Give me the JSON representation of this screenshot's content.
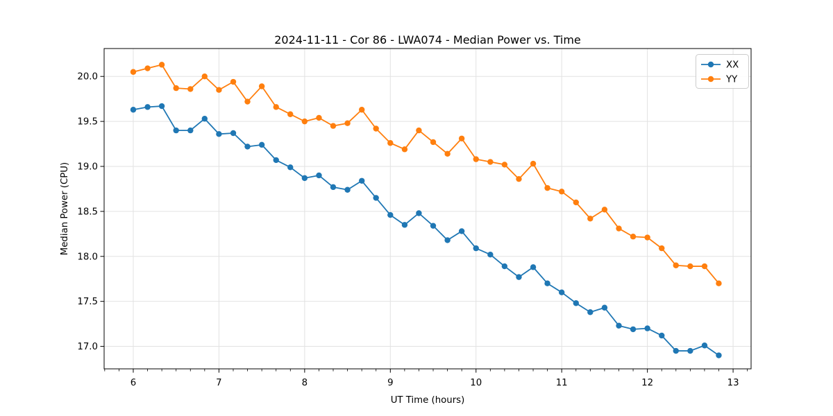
{
  "chart_data": {
    "type": "line",
    "title": "2024-11-11 - Cor 86 - LWA074 - Median Power vs. Time",
    "xlabel": "UT Time (hours)",
    "ylabel": "Median Power (CPU)",
    "legend_position": "upper right",
    "grid": true,
    "marker": "circle",
    "xlim": [
      5.66,
      13.21
    ],
    "ylim": [
      16.75,
      20.31
    ],
    "xticks": [
      6,
      7,
      8,
      9,
      10,
      11,
      12,
      13
    ],
    "xtick_labels": [
      "6",
      "7",
      "8",
      "9",
      "10",
      "11",
      "12",
      "13"
    ],
    "yticks": [
      17.0,
      17.5,
      18.0,
      18.5,
      19.0,
      19.5,
      20.0
    ],
    "ytick_labels": [
      "17.0",
      "17.5",
      "18.0",
      "18.5",
      "19.0",
      "19.5",
      "20.0"
    ],
    "x_minor_step": 0.1666667,
    "grid_color": "#e2e2e2",
    "axis_color": "#000000",
    "x": [
      6.0,
      6.167,
      6.333,
      6.5,
      6.667,
      6.833,
      7.0,
      7.167,
      7.333,
      7.5,
      7.667,
      7.833,
      8.0,
      8.167,
      8.333,
      8.5,
      8.667,
      8.833,
      9.0,
      9.167,
      9.333,
      9.5,
      9.667,
      9.833,
      10.0,
      10.167,
      10.333,
      10.5,
      10.667,
      10.833,
      11.0,
      11.167,
      11.333,
      11.5,
      11.667,
      11.833,
      12.0,
      12.167,
      12.333,
      12.5,
      12.667,
      12.833
    ],
    "series": [
      {
        "name": "XX",
        "color": "#1f77b4",
        "values": [
          19.63,
          19.66,
          19.67,
          19.4,
          19.4,
          19.53,
          19.36,
          19.37,
          19.22,
          19.24,
          19.07,
          18.99,
          18.87,
          18.9,
          18.77,
          18.74,
          18.84,
          18.65,
          18.46,
          18.35,
          18.48,
          18.34,
          18.18,
          18.28,
          18.09,
          18.02,
          17.89,
          17.77,
          17.88,
          17.7,
          17.6,
          17.48,
          17.38,
          17.43,
          17.23,
          17.19,
          17.2,
          17.12,
          16.95,
          16.95,
          17.01,
          16.9
        ]
      },
      {
        "name": "YY",
        "color": "#ff7f0e",
        "values": [
          20.05,
          20.09,
          20.13,
          19.87,
          19.86,
          20.0,
          19.85,
          19.94,
          19.72,
          19.89,
          19.66,
          19.58,
          19.5,
          19.54,
          19.45,
          19.48,
          19.63,
          19.42,
          19.26,
          19.19,
          19.4,
          19.27,
          19.14,
          19.31,
          19.08,
          19.05,
          19.02,
          18.86,
          19.03,
          18.76,
          18.72,
          18.6,
          18.42,
          18.52,
          18.31,
          18.22,
          18.21,
          18.09,
          17.9,
          17.89,
          17.89,
          17.7
        ]
      }
    ]
  }
}
